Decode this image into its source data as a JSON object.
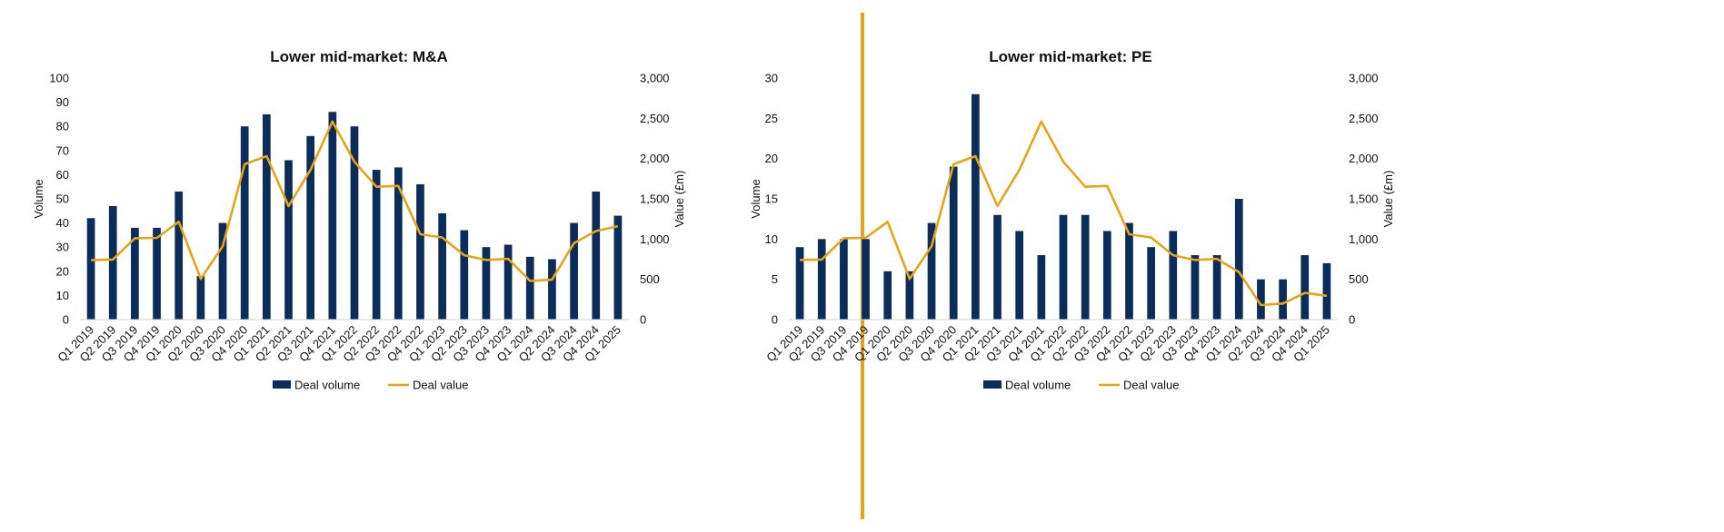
{
  "colors": {
    "bar": "#0b2d5b",
    "line": "#e8a317",
    "divider": "#e8a317",
    "text": "#111111"
  },
  "chart_data": [
    {
      "type": "bar",
      "title": "Lower mid-market: M&A",
      "ylabel": "Volume",
      "y2label": "Value (£m)",
      "ylim": [
        0,
        100
      ],
      "y2lim": [
        0,
        3000
      ],
      "yticks": [
        "0",
        "10",
        "20",
        "30",
        "40",
        "50",
        "60",
        "70",
        "80",
        "90",
        "100"
      ],
      "y2ticks": [
        "0",
        "500",
        "1,000",
        "1,500",
        "2,000",
        "2,500",
        "3,000"
      ],
      "categories": [
        "Q1 2019",
        "Q2 2019",
        "Q3 2019",
        "Q4 2019",
        "Q1 2020",
        "Q2 2020",
        "Q3 2020",
        "Q4 2020",
        "Q1 2021",
        "Q2 2021",
        "Q3 2021",
        "Q4 2021",
        "Q1 2022",
        "Q2 2022",
        "Q3 2022",
        "Q4 2022",
        "Q1 2023",
        "Q2 2023",
        "Q3 2023",
        "Q4 2023",
        "Q1 2024",
        "Q2 2024",
        "Q3 2024",
        "Q4 2024",
        "Q1 2025"
      ],
      "series": [
        {
          "name": "Deal volume",
          "type": "bar",
          "axis": "left",
          "values": [
            42,
            47,
            38,
            38,
            53,
            18,
            40,
            80,
            85,
            66,
            76,
            86,
            80,
            62,
            63,
            56,
            44,
            37,
            30,
            31,
            26,
            25,
            40,
            53,
            43
          ]
        },
        {
          "name": "Deal value",
          "type": "line",
          "axis": "right",
          "values": [
            740,
            745,
            1010,
            1015,
            1215,
            505,
            910,
            1930,
            2030,
            1410,
            1860,
            2460,
            1960,
            1650,
            1660,
            1060,
            1020,
            800,
            740,
            755,
            480,
            495,
            950,
            1100,
            1160
          ]
        }
      ],
      "legend": "bottom",
      "grid": false
    },
    {
      "type": "bar",
      "title": "Lower mid-market: PE",
      "ylabel": "Volume",
      "y2label": "Value (£m)",
      "ylim": [
        0,
        30
      ],
      "y2lim": [
        0,
        3000
      ],
      "yticks": [
        "0",
        "5",
        "10",
        "15",
        "20",
        "25",
        "30"
      ],
      "y2ticks": [
        "0",
        "500",
        "1,000",
        "1,500",
        "2,000",
        "2,500",
        "3,000"
      ],
      "categories": [
        "Q1 2019",
        "Q2 2019",
        "Q3 2019",
        "Q4 2019",
        "Q1 2020",
        "Q2 2020",
        "Q3 2020",
        "Q4 2020",
        "Q1 2021",
        "Q2 2021",
        "Q3 2021",
        "Q4 2021",
        "Q1 2022",
        "Q2 2022",
        "Q3 2022",
        "Q4 2022",
        "Q1 2023",
        "Q2 2023",
        "Q3 2023",
        "Q4 2023",
        "Q1 2024",
        "Q2 2024",
        "Q3 2024",
        "Q4 2024",
        "Q1 2025"
      ],
      "series": [
        {
          "name": "Deal volume",
          "type": "bar",
          "axis": "left",
          "values": [
            9,
            10,
            10,
            10,
            6,
            6,
            12,
            19,
            28,
            13,
            11,
            8,
            13,
            13,
            11,
            12,
            9,
            11,
            8,
            8,
            15,
            5,
            5,
            8,
            7
          ]
        },
        {
          "name": "Deal value",
          "type": "line",
          "axis": "right",
          "values": [
            740,
            745,
            1010,
            1015,
            1215,
            505,
            910,
            1930,
            2030,
            1410,
            1860,
            2460,
            1960,
            1650,
            1660,
            1060,
            1020,
            800,
            740,
            755,
            590,
            180,
            200,
            330,
            295
          ]
        }
      ],
      "legend": "bottom",
      "grid": false
    }
  ]
}
